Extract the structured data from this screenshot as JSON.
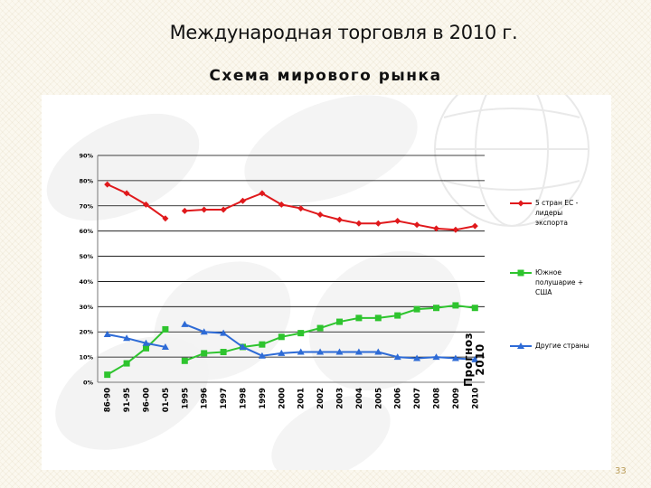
{
  "slide": {
    "title": "Международная торговля в 2010 г.",
    "page_number": "33"
  },
  "chart_data": {
    "type": "line",
    "title": "Схема мирового рынка",
    "categories": [
      "86-90",
      "91-95",
      "96-00",
      "01-05",
      "1995",
      "1996",
      "1997",
      "1998",
      "1999",
      "2000",
      "2001",
      "2002",
      "2003",
      "2004",
      "2005",
      "2006",
      "2007",
      "2008",
      "2009",
      "2010"
    ],
    "segments": [
      [
        0,
        3
      ],
      [
        4,
        19
      ]
    ],
    "ylim": [
      0,
      90
    ],
    "yticks": [
      "0%",
      "10%",
      "20%",
      "30%",
      "40%",
      "50%",
      "60%",
      "70%",
      "80%",
      "90%"
    ],
    "grid": true,
    "legend_position": "right",
    "annotation": [
      "Прогноз",
      "2010"
    ],
    "series": [
      {
        "name": "5 стран ЕС - лидеры экспорта",
        "legend_lines": [
          "5 стран ЕС -",
          "лидеры",
          "экспорта"
        ],
        "color": "#e0191c",
        "marker": "diamond",
        "values": [
          78.5,
          75,
          70.5,
          65,
          68,
          68.5,
          68.5,
          72,
          75,
          70.5,
          69,
          66.5,
          64.5,
          63,
          63,
          64,
          62.5,
          61,
          60.5,
          62
        ]
      },
      {
        "name": "Южное полушарие + США",
        "legend_lines": [
          "Южное",
          "полушарие +",
          "США"
        ],
        "color": "#2ec42e",
        "marker": "square",
        "values": [
          3,
          7.5,
          13.5,
          21,
          8.5,
          11.5,
          12,
          14,
          15,
          18,
          19.5,
          21.5,
          24,
          25.5,
          25.5,
          26.5,
          29,
          29.5,
          30.5,
          29.5
        ]
      },
      {
        "name": "Другие страны",
        "legend_lines": [
          "Другие страны"
        ],
        "color": "#2e6bd6",
        "marker": "triangle",
        "values": [
          19,
          17.5,
          15.5,
          14,
          23,
          20,
          19.5,
          14,
          10.5,
          11.5,
          12,
          12,
          12,
          12,
          12,
          10,
          9.5,
          10,
          9.5,
          9
        ]
      }
    ]
  }
}
